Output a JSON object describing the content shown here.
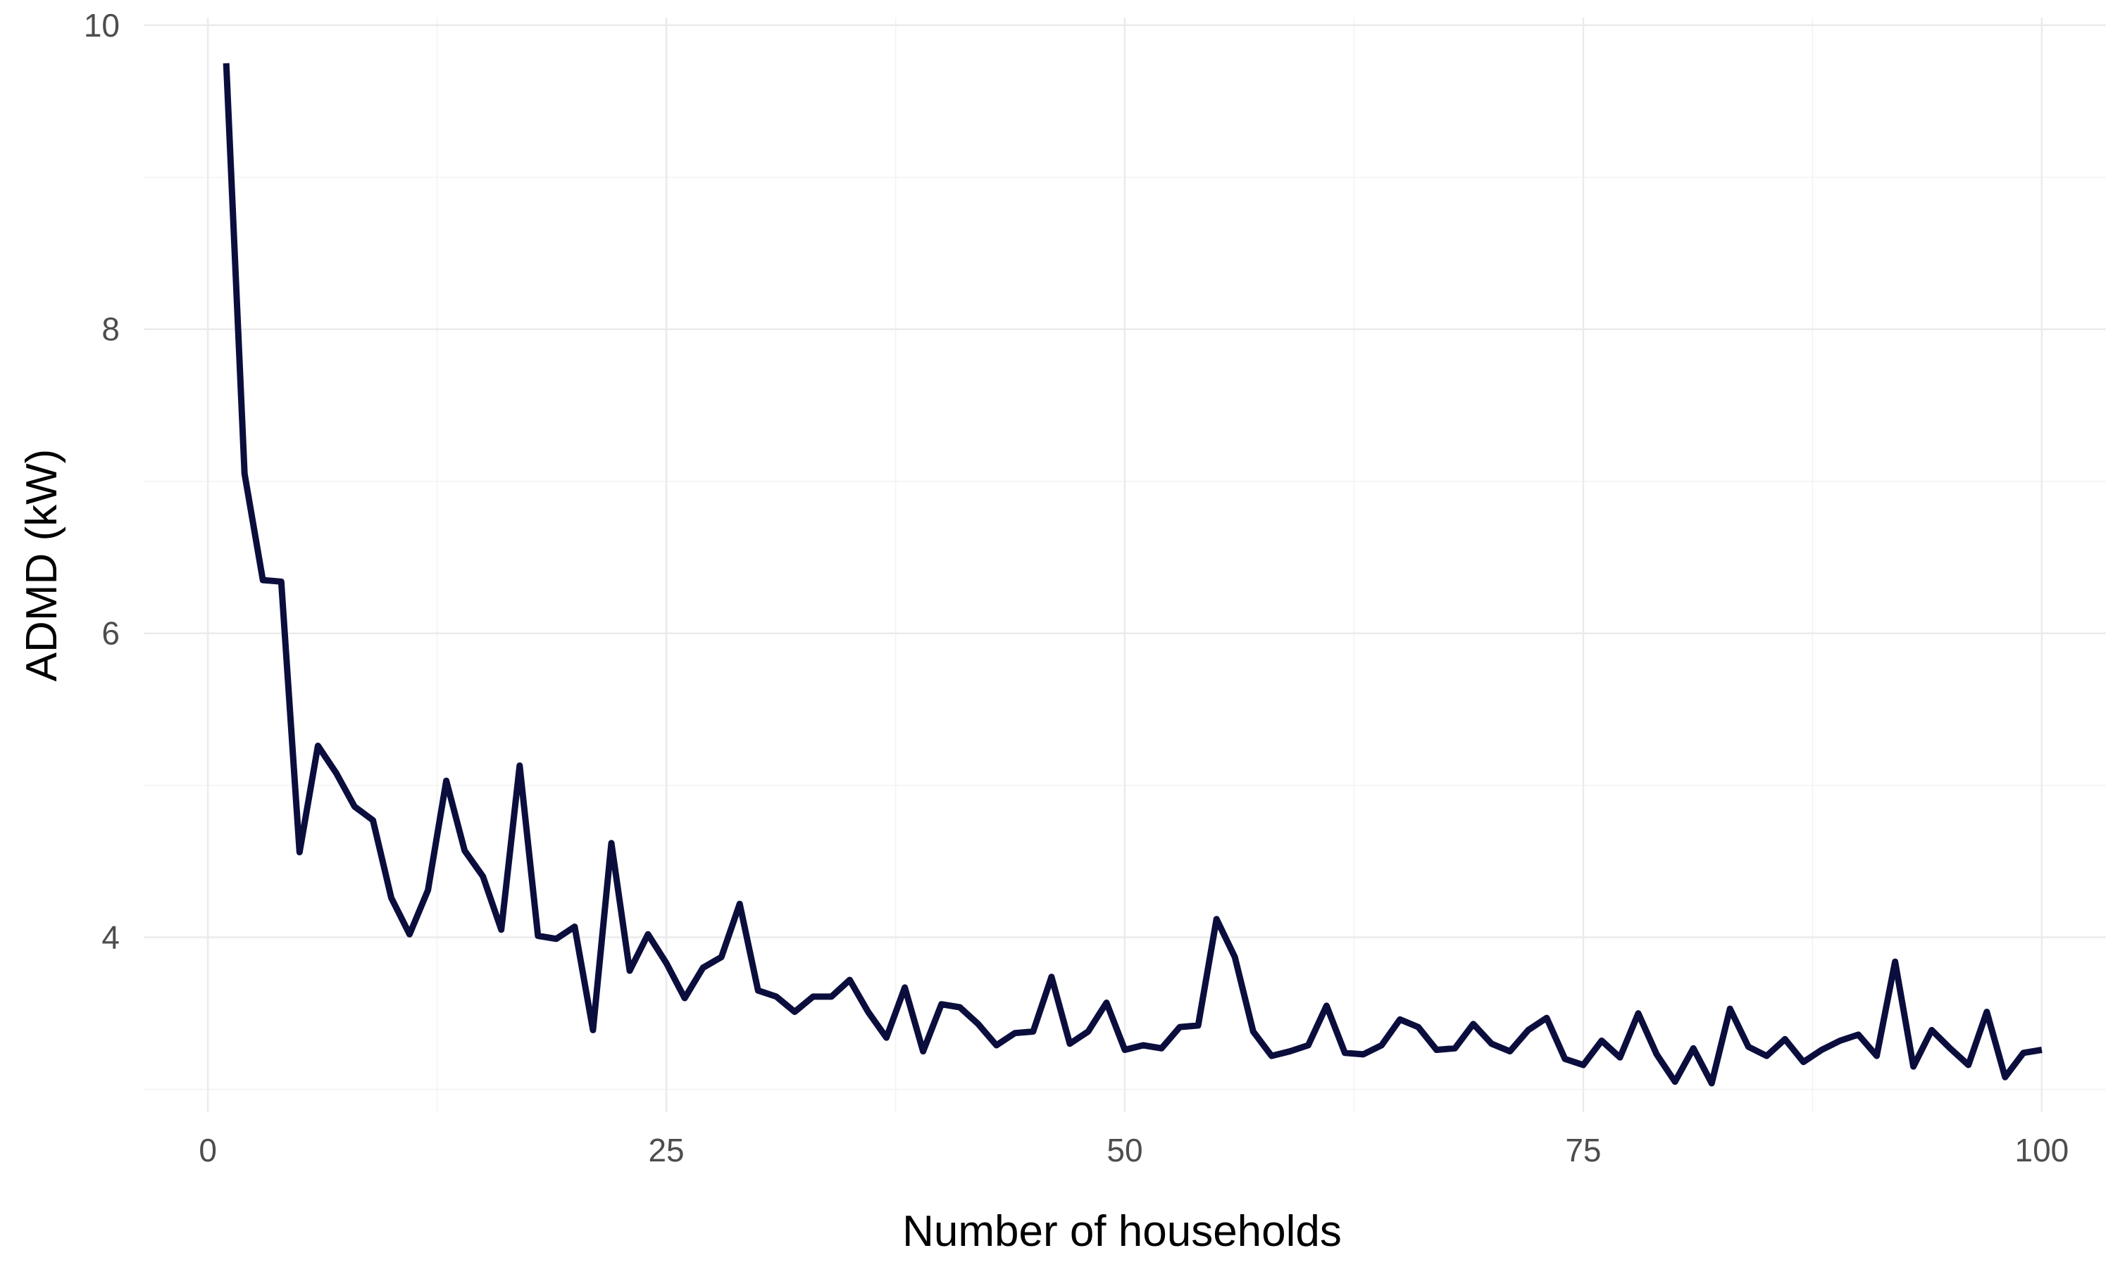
{
  "chart_data": {
    "type": "line",
    "title": "",
    "xlabel": "Number of households",
    "ylabel": "ADMD (kW)",
    "xlim": [
      -3.5,
      103.5
    ],
    "ylim": [
      2.85,
      10.05
    ],
    "x_ticks": [
      0,
      25,
      50,
      75,
      100
    ],
    "x_tick_labels": [
      "0",
      "25",
      "50",
      "75",
      "100"
    ],
    "x_minor_ticks": [
      12.5,
      37.5,
      62.5,
      87.5
    ],
    "y_ticks": [
      4,
      6,
      8,
      10
    ],
    "y_tick_labels": [
      "4",
      "6",
      "8",
      "10"
    ],
    "y_minor_ticks": [
      3,
      5,
      7,
      9
    ],
    "grid": true,
    "legend": "none",
    "line_color": "#0b0e3d",
    "grid_color": "#ebebeb",
    "tick_label_color": "#4d4d4d",
    "x": [
      1,
      2,
      3,
      4,
      5,
      6,
      7,
      8,
      9,
      10,
      11,
      12,
      13,
      14,
      15,
      16,
      17,
      18,
      19,
      20,
      21,
      22,
      23,
      24,
      25,
      26,
      27,
      28,
      29,
      30,
      31,
      32,
      33,
      34,
      35,
      36,
      37,
      38,
      39,
      40,
      41,
      42,
      43,
      44,
      45,
      46,
      47,
      48,
      49,
      50,
      51,
      52,
      53,
      54,
      55,
      56,
      57,
      58,
      59,
      60,
      61,
      62,
      63,
      64,
      65,
      66,
      67,
      68,
      69,
      70,
      71,
      72,
      73,
      74,
      75,
      76,
      77,
      78,
      79,
      80,
      81,
      82,
      83,
      84,
      85,
      86,
      87,
      88,
      89,
      90,
      91,
      92,
      93,
      94,
      95,
      96,
      97,
      98,
      99,
      100
    ],
    "series": [
      {
        "values": [
          9.75,
          7.05,
          6.35,
          6.34,
          4.56,
          5.26,
          5.08,
          4.86,
          4.77,
          4.26,
          4.02,
          4.31,
          5.03,
          4.57,
          4.4,
          4.05,
          5.13,
          4.01,
          3.99,
          4.07,
          3.39,
          4.62,
          3.78,
          4.02,
          3.83,
          3.6,
          3.8,
          3.87,
          4.22,
          3.65,
          3.61,
          3.51,
          3.61,
          3.61,
          3.72,
          3.51,
          3.34,
          3.67,
          3.25,
          3.56,
          3.54,
          3.43,
          3.29,
          3.37,
          3.38,
          3.74,
          3.3,
          3.38,
          3.57,
          3.26,
          3.29,
          3.27,
          3.41,
          3.42,
          4.12,
          3.87,
          3.38,
          3.22,
          3.25,
          3.29,
          3.55,
          3.24,
          3.23,
          3.29,
          3.46,
          3.41,
          3.26,
          3.27,
          3.43,
          3.3,
          3.25,
          3.39,
          3.47,
          3.2,
          3.16,
          3.32,
          3.21,
          3.5,
          3.23,
          3.05,
          3.27,
          3.04,
          3.53,
          3.28,
          3.22,
          3.33,
          3.18,
          3.26,
          3.32,
          3.36,
          3.22,
          3.84,
          3.15,
          3.39,
          3.27,
          3.16,
          3.51,
          3.08,
          3.24,
          3.26
        ]
      }
    ]
  }
}
